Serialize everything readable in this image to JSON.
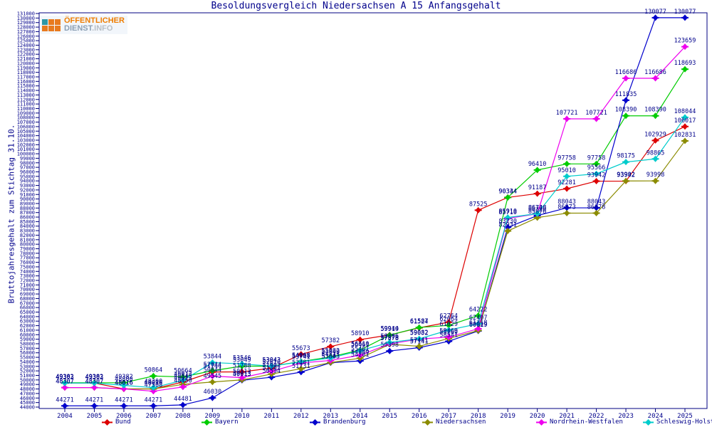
{
  "title": "Besoldungsvergleich Niedersachsen A 15 Anfangsgehalt",
  "y_axis_title": "Bruttojahresgehalt zum Stichtag 31.10.",
  "logo": {
    "line1": "ÖFFENTLICHER",
    "line2": "DIENST",
    "line3": ".INFO"
  },
  "colors": {
    "axis": "#000080",
    "label_text": "#00008b",
    "bund": "#dd0000",
    "bayern": "#00cc00",
    "brandenburg": "#0000cc",
    "niedersachsen": "#8b8b00",
    "nordrhein_westfalen": "#ee00ee",
    "schleswig_holstein": "#00cccc"
  },
  "chart_data": {
    "type": "line",
    "title": "Besoldungsvergleich Niedersachsen A 15 Anfangsgehalt",
    "xlabel": "",
    "ylabel": "Bruttojahresgehalt zum Stichtag 31.10.",
    "ylim": [
      44000,
      131000
    ],
    "ytick_step": 1000,
    "grid": false,
    "legend_position": "bottom",
    "point_labels": true,
    "x": [
      2004,
      2005,
      2006,
      2007,
      2008,
      2009,
      2010,
      2011,
      2012,
      2013,
      2014,
      2015,
      2016,
      2017,
      2018,
      2019,
      2020,
      2021,
      2022,
      2023,
      2024,
      2025
    ],
    "series": [
      {
        "name": "Bund",
        "color": "#dd0000",
        "values": [
          49303,
          49303,
          48016,
          48016,
          49545,
          51744,
          51788,
          52610,
          55673,
          57382,
          58910,
          59944,
          61524,
          62764,
          87525,
          90344,
          91187,
          92281,
          93942,
          93942,
          102929,
          106017
        ]
      },
      {
        "name": "Bayern",
        "color": "#00cc00",
        "values": [
          49382,
          49382,
          49382,
          50864,
          50664,
          52044,
          53049,
          53043,
          54068,
          55082,
          56610,
          59919,
          61587,
          62064,
          64222,
          90334,
          96410,
          97758,
          97758,
          108390,
          108390,
          118693
        ]
      },
      {
        "name": "Brandenburg",
        "color": "#0000cc",
        "values": [
          44271,
          44271,
          44271,
          44271,
          44481,
          46030,
          49913,
          50594,
          51731,
          53803,
          54201,
          56398,
          57141,
          58541,
          60829,
          83730,
          86328,
          88043,
          88043,
          111835,
          130077,
          130077
        ]
      },
      {
        "name": "Niedersachsen",
        "color": "#8b8b00",
        "values": [
          48307,
          48307,
          48016,
          48016,
          49013,
          49545,
          50013,
          51302,
          52481,
          53843,
          54809,
          57878,
          57441,
          59169,
          60919,
          82931,
          85876,
          86873,
          86878,
          93992,
          93998,
          102831
        ]
      },
      {
        "name": "Nordrhein-Westfalen",
        "color": "#ee00ee",
        "values": [
          48307,
          48307,
          48016,
          47508,
          48450,
          50844,
          50513,
          51902,
          53741,
          54313,
          55461,
          57978,
          59032,
          59469,
          61318,
          85710,
          86728,
          107721,
          107721,
          116686,
          116686,
          123659
        ]
      },
      {
        "name": "Schleswig-Holstein",
        "color": "#00cccc",
        "values": [
          49303,
          49303,
          48800,
          48300,
          49913,
          53844,
          53546,
          53043,
          54008,
          54849,
          56461,
          58306,
          59082,
          61029,
          62407,
          85910,
          86748,
          95010,
          95566,
          98175,
          98865,
          108044
        ]
      }
    ]
  }
}
